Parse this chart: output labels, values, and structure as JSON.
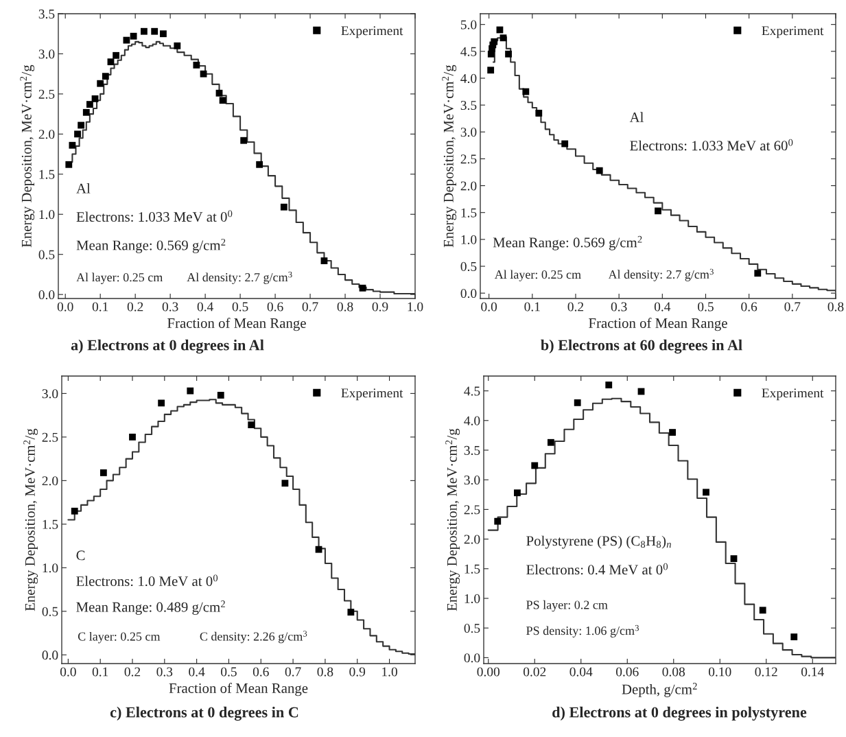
{
  "chart_data": [
    {
      "type": "scatter",
      "title": "a) Electrons at 0 degrees in Al",
      "xlabel": "Fraction of Mean Range",
      "ylabel": "Energy Deposition, MeV·cm$^{2}$/g",
      "xlim": [
        -0.02,
        1.0
      ],
      "ylim": [
        -0.05,
        3.5
      ],
      "xticks": [
        {
          "value": 0,
          "label": "0.0"
        },
        0.1,
        0.2,
        0.3,
        0.4,
        0.5,
        0.6,
        0.7,
        0.8,
        0.9,
        {
          "value": 1,
          "label": "1.0"
        }
      ],
      "yticks": [
        {
          "value": 0,
          "label": "0.0"
        },
        0.5,
        {
          "value": 1,
          "label": "1.0"
        },
        1.5,
        {
          "value": 2,
          "label": "2.0"
        },
        2.5,
        {
          "value": 3,
          "label": "3.0"
        },
        3.5
      ],
      "legend": "top right",
      "grid": false,
      "series": [
        {
          "name": "Experiment",
          "marker": "square",
          "color": "#000000",
          "x": [
            0.01,
            0.02,
            0.035,
            0.045,
            0.06,
            0.07,
            0.085,
            0.1,
            0.115,
            0.13,
            0.145,
            0.175,
            0.195,
            0.225,
            0.255,
            0.28,
            0.32,
            0.375,
            0.395,
            0.44,
            0.45,
            0.51,
            0.555,
            0.625,
            0.74,
            0.85
          ],
          "values": [
            1.62,
            1.86,
            2.0,
            2.11,
            2.27,
            2.37,
            2.44,
            2.63,
            2.72,
            2.9,
            2.98,
            3.17,
            3.22,
            3.28,
            3.28,
            3.25,
            3.1,
            2.86,
            2.75,
            2.51,
            2.42,
            1.92,
            1.62,
            1.09,
            0.42,
            0.08
          ]
        },
        {
          "type": "step",
          "color": "#333333",
          "x": [
            0.01,
            0.02,
            0.03,
            0.04,
            0.05,
            0.06,
            0.07,
            0.08,
            0.09,
            0.1,
            0.11,
            0.12,
            0.13,
            0.14,
            0.15,
            0.16,
            0.17,
            0.18,
            0.19,
            0.2,
            0.21,
            0.22,
            0.23,
            0.24,
            0.25,
            0.26,
            0.27,
            0.28,
            0.3,
            0.32,
            0.34,
            0.36,
            0.38,
            0.4,
            0.42,
            0.44,
            0.46,
            0.48,
            0.5,
            0.52,
            0.54,
            0.56,
            0.58,
            0.6,
            0.62,
            0.64,
            0.66,
            0.68,
            0.7,
            0.72,
            0.74,
            0.76,
            0.78,
            0.8,
            0.82,
            0.84,
            0.86,
            0.88,
            0.9,
            0.94,
            1.0
          ],
          "values": [
            1.65,
            1.75,
            1.85,
            1.95,
            2.05,
            2.15,
            2.25,
            2.32,
            2.42,
            2.5,
            2.62,
            2.74,
            2.82,
            2.87,
            2.92,
            2.98,
            3.05,
            3.1,
            3.12,
            3.15,
            3.14,
            3.1,
            3.08,
            3.1,
            3.12,
            3.15,
            3.13,
            3.1,
            3.07,
            3.02,
            2.98,
            2.93,
            2.85,
            2.75,
            2.62,
            2.48,
            2.38,
            2.22,
            2.05,
            1.9,
            1.76,
            1.6,
            1.48,
            1.35,
            1.2,
            1.05,
            0.9,
            0.77,
            0.65,
            0.52,
            0.42,
            0.33,
            0.25,
            0.18,
            0.13,
            0.09,
            0.06,
            0.04,
            0.03,
            0.01,
            0.0
          ]
        }
      ],
      "annotations": [
        "Al",
        "Electrons: 1.033 MeV at 0$^{0}$",
        "Mean Range: 0.569 g/cm$^{2}$",
        "Al layer: 0.25 cm",
        "Al density: 2.7 g/cm$^{3}$"
      ]
    },
    {
      "type": "scatter",
      "title": "b) Electrons at 60 degrees in Al",
      "xlabel": "Fraction of Mean Range",
      "ylabel": "Energy Deposition, MeV·cm$^{2}$/g",
      "xlim": [
        -0.02,
        0.8
      ],
      "ylim": [
        -0.1,
        5.2
      ],
      "xticks": [
        {
          "value": 0,
          "label": "0.0"
        },
        0.1,
        0.2,
        0.3,
        0.4,
        0.5,
        0.6,
        0.7,
        0.8
      ],
      "yticks": [
        {
          "value": 0,
          "label": "0.0"
        },
        0.5,
        {
          "value": 1,
          "label": "1.0"
        },
        1.5,
        {
          "value": 2,
          "label": "2.0"
        },
        2.5,
        {
          "value": 3,
          "label": "3.0"
        },
        3.5,
        {
          "value": 4,
          "label": "4.0"
        },
        4.5,
        {
          "value": 5,
          "label": "5.0"
        }
      ],
      "legend": "top right",
      "grid": false,
      "series": [
        {
          "name": "Experiment",
          "marker": "square",
          "color": "#000000",
          "x": [
            0.004,
            0.005,
            0.007,
            0.009,
            0.012,
            0.025,
            0.033,
            0.045,
            0.085,
            0.115,
            0.175,
            0.255,
            0.39,
            0.62
          ],
          "values": [
            4.15,
            4.45,
            4.55,
            4.62,
            4.68,
            4.9,
            4.75,
            4.45,
            3.75,
            3.35,
            2.78,
            2.28,
            1.53,
            0.37
          ]
        },
        {
          "type": "step",
          "color": "#333333",
          "x": [
            0.01,
            0.013,
            0.02,
            0.03,
            0.04,
            0.05,
            0.06,
            0.07,
            0.08,
            0.09,
            0.1,
            0.11,
            0.12,
            0.13,
            0.14,
            0.15,
            0.16,
            0.18,
            0.2,
            0.22,
            0.24,
            0.26,
            0.28,
            0.3,
            0.32,
            0.34,
            0.36,
            0.38,
            0.4,
            0.42,
            0.44,
            0.46,
            0.48,
            0.5,
            0.52,
            0.54,
            0.56,
            0.58,
            0.6,
            0.62,
            0.64,
            0.66,
            0.68,
            0.7,
            0.72,
            0.74,
            0.76,
            0.78,
            0.8
          ],
          "values": [
            4.3,
            4.7,
            4.75,
            4.77,
            4.55,
            4.3,
            4.05,
            3.8,
            3.65,
            3.55,
            3.45,
            3.3,
            3.18,
            3.05,
            2.95,
            2.85,
            2.78,
            2.68,
            2.55,
            2.42,
            2.3,
            2.2,
            2.1,
            2.02,
            1.95,
            1.87,
            1.78,
            1.68,
            1.55,
            1.45,
            1.35,
            1.24,
            1.14,
            1.04,
            0.94,
            0.84,
            0.74,
            0.64,
            0.54,
            0.44,
            0.36,
            0.28,
            0.22,
            0.17,
            0.13,
            0.1,
            0.07,
            0.05,
            0.03
          ]
        }
      ],
      "annotations": [
        "Al",
        "Electrons: 1.033 MeV at 60$^{0}$",
        "Mean Range: 0.569 g/cm$^{2}$",
        "Al layer: 0.25 cm",
        "Al density: 2.7 g/cm$^{3}$"
      ]
    },
    {
      "type": "scatter",
      "title": "c) Electrons at 0 degrees in C",
      "xlabel": "Fraction of Mean Range",
      "ylabel": "Energy Deposition, MeV·cm$^{2}$/g",
      "xlim": [
        -0.02,
        1.08
      ],
      "ylim": [
        -0.1,
        3.2
      ],
      "xticks": [
        {
          "value": 0,
          "label": "0.0"
        },
        0.1,
        0.2,
        0.3,
        0.4,
        0.5,
        0.6,
        0.7,
        0.8,
        0.9,
        {
          "value": 1,
          "label": "1.0"
        }
      ],
      "yticks": [
        {
          "value": 0,
          "label": "0.0"
        },
        0.5,
        {
          "value": 1,
          "label": "1.0"
        },
        1.5,
        {
          "value": 2,
          "label": "2.0"
        },
        2.5,
        {
          "value": 3,
          "label": "3.0"
        }
      ],
      "legend": "top right",
      "grid": false,
      "series": [
        {
          "name": "Experiment",
          "marker": "square",
          "color": "#000000",
          "x": [
            0.02,
            0.11,
            0.2,
            0.29,
            0.38,
            0.475,
            0.57,
            0.675,
            0.78,
            0.88
          ],
          "values": [
            1.65,
            2.09,
            2.5,
            2.89,
            3.03,
            2.98,
            2.64,
            1.97,
            1.21,
            0.49
          ]
        },
        {
          "type": "step",
          "color": "#333333",
          "x": [
            0.0,
            0.02,
            0.04,
            0.06,
            0.08,
            0.1,
            0.12,
            0.14,
            0.16,
            0.18,
            0.2,
            0.22,
            0.24,
            0.26,
            0.28,
            0.3,
            0.32,
            0.34,
            0.36,
            0.38,
            0.4,
            0.42,
            0.44,
            0.46,
            0.48,
            0.5,
            0.52,
            0.54,
            0.56,
            0.58,
            0.6,
            0.62,
            0.64,
            0.66,
            0.68,
            0.7,
            0.72,
            0.74,
            0.76,
            0.78,
            0.8,
            0.82,
            0.84,
            0.86,
            0.88,
            0.9,
            0.92,
            0.94,
            0.96,
            0.98,
            1.0,
            1.02,
            1.04,
            1.06,
            1.08
          ],
          "values": [
            1.55,
            1.65,
            1.72,
            1.77,
            1.82,
            1.9,
            2.0,
            2.07,
            2.15,
            2.25,
            2.33,
            2.44,
            2.53,
            2.62,
            2.68,
            2.76,
            2.8,
            2.85,
            2.87,
            2.9,
            2.92,
            2.92,
            2.93,
            2.89,
            2.87,
            2.87,
            2.84,
            2.77,
            2.7,
            2.6,
            2.5,
            2.4,
            2.26,
            2.15,
            2.05,
            1.9,
            1.72,
            1.52,
            1.35,
            1.22,
            1.05,
            0.88,
            0.75,
            0.62,
            0.5,
            0.4,
            0.3,
            0.22,
            0.15,
            0.1,
            0.06,
            0.04,
            0.02,
            0.01,
            0.0
          ]
        }
      ],
      "annotations": [
        "C",
        "Electrons: 1.0 MeV at 0$^{0}$",
        "Mean Range: 0.489 g/cm$^{2}$",
        "C layer: 0.25 cm",
        "C density: 2.26 g/cm$^{3}$"
      ]
    },
    {
      "type": "scatter",
      "title": "d) Electrons at 0 degrees in polystyrene",
      "xlabel": "Depth, g/cm$^{2}$",
      "ylabel": "Energy Deposition, MeV·cm$^{2}$/g",
      "xlim": [
        -0.002,
        0.15
      ],
      "ylim": [
        -0.1,
        4.75
      ],
      "xticks": [
        {
          "value": 0,
          "label": "0.00"
        },
        {
          "value": 0.02,
          "label": "0.02"
        },
        {
          "value": 0.04,
          "label": "0.04"
        },
        {
          "value": 0.06,
          "label": "0.06"
        },
        {
          "value": 0.08,
          "label": "0.08"
        },
        {
          "value": 0.1,
          "label": "0.10"
        },
        {
          "value": 0.12,
          "label": "0.12"
        },
        {
          "value": 0.14,
          "label": "0.14"
        }
      ],
      "yticks": [
        {
          "value": 0,
          "label": "0.0"
        },
        0.5,
        {
          "value": 1,
          "label": "1.0"
        },
        1.5,
        {
          "value": 2,
          "label": "2.0"
        },
        2.5,
        {
          "value": 3,
          "label": "3.0"
        },
        3.5,
        {
          "value": 4,
          "label": "4.0"
        },
        4.5
      ],
      "legend": "top right",
      "grid": false,
      "series": [
        {
          "name": "Experiment",
          "marker": "square",
          "color": "#000000",
          "x": [
            0.004,
            0.0125,
            0.02,
            0.027,
            0.0385,
            0.052,
            0.066,
            0.0795,
            0.094,
            0.106,
            0.1185,
            0.132
          ],
          "values": [
            2.3,
            2.78,
            3.24,
            3.63,
            4.3,
            4.6,
            4.49,
            3.8,
            2.79,
            1.67,
            0.8,
            0.35
          ]
        },
        {
          "type": "step",
          "color": "#333333",
          "x": [
            0.0,
            0.0041,
            0.0082,
            0.0123,
            0.0164,
            0.0205,
            0.0246,
            0.0287,
            0.0328,
            0.0369,
            0.041,
            0.0451,
            0.0492,
            0.0533,
            0.0574,
            0.0615,
            0.0656,
            0.0697,
            0.0738,
            0.0779,
            0.082,
            0.0861,
            0.0902,
            0.0943,
            0.0984,
            0.1025,
            0.1066,
            0.1107,
            0.1148,
            0.1189,
            0.123,
            0.1271,
            0.1312,
            0.1353,
            0.1394,
            0.15
          ],
          "values": [
            2.15,
            2.37,
            2.55,
            2.76,
            2.94,
            3.2,
            3.44,
            3.65,
            3.85,
            4.02,
            4.18,
            4.29,
            4.36,
            4.37,
            4.32,
            4.23,
            4.12,
            3.97,
            3.79,
            3.58,
            3.32,
            3.01,
            2.69,
            2.37,
            1.95,
            1.59,
            1.25,
            0.9,
            0.64,
            0.4,
            0.24,
            0.13,
            0.05,
            0.02,
            0.0,
            0.0
          ]
        }
      ],
      "annotations": [
        "Polystyrene (PS) (C$_{8}$H$_{8}$)$_{n}$",
        "Electrons: 0.4 MeV at 0$^{0}$",
        "PS layer: 0.2 cm",
        "PS density: 1.06 g/cm$^{3}$"
      ]
    }
  ]
}
